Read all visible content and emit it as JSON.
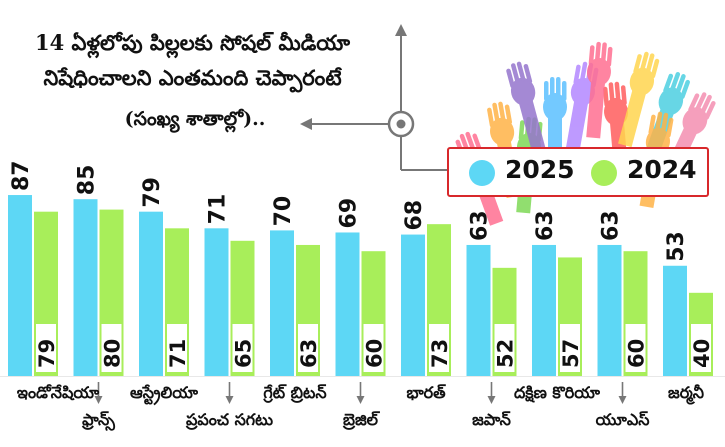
{
  "title_lines": [
    "14 ఏళ్లలోపు పిల్లలకు సోషల్ మీడియా",
    "నిషేధించాలని ఎంతమంది చెప్పారంటే",
    "(సంఖ్య శాతాల్లో).."
  ],
  "legend": [
    {
      "label": "2025",
      "color": "#5dd7f5"
    },
    {
      "label": "2024",
      "color": "#a8ee5a"
    }
  ],
  "chart_data": {
    "type": "bar",
    "categories": [
      "ఇండోనేషియా",
      "ఫ్రాన్స్",
      "ఆస్ట్రేలియా",
      "ప్రపంచ సగటు",
      "గ్రేట్ బ్రిటన్",
      "బ్రెజిల్",
      "భారత్",
      "జపాన్",
      "దక్షిణ కొరియా",
      "యూఎస్",
      "జర్మనీ"
    ],
    "series": [
      {
        "name": "2025",
        "values": [
          87,
          85,
          79,
          71,
          70,
          69,
          68,
          63,
          63,
          63,
          53
        ]
      },
      {
        "name": "2024",
        "values": [
          79,
          80,
          71,
          65,
          63,
          60,
          73,
          52,
          57,
          60,
          40
        ]
      }
    ],
    "label_rows": [
      0,
      1,
      0,
      1,
      0,
      1,
      0,
      1,
      0,
      1,
      0
    ]
  }
}
